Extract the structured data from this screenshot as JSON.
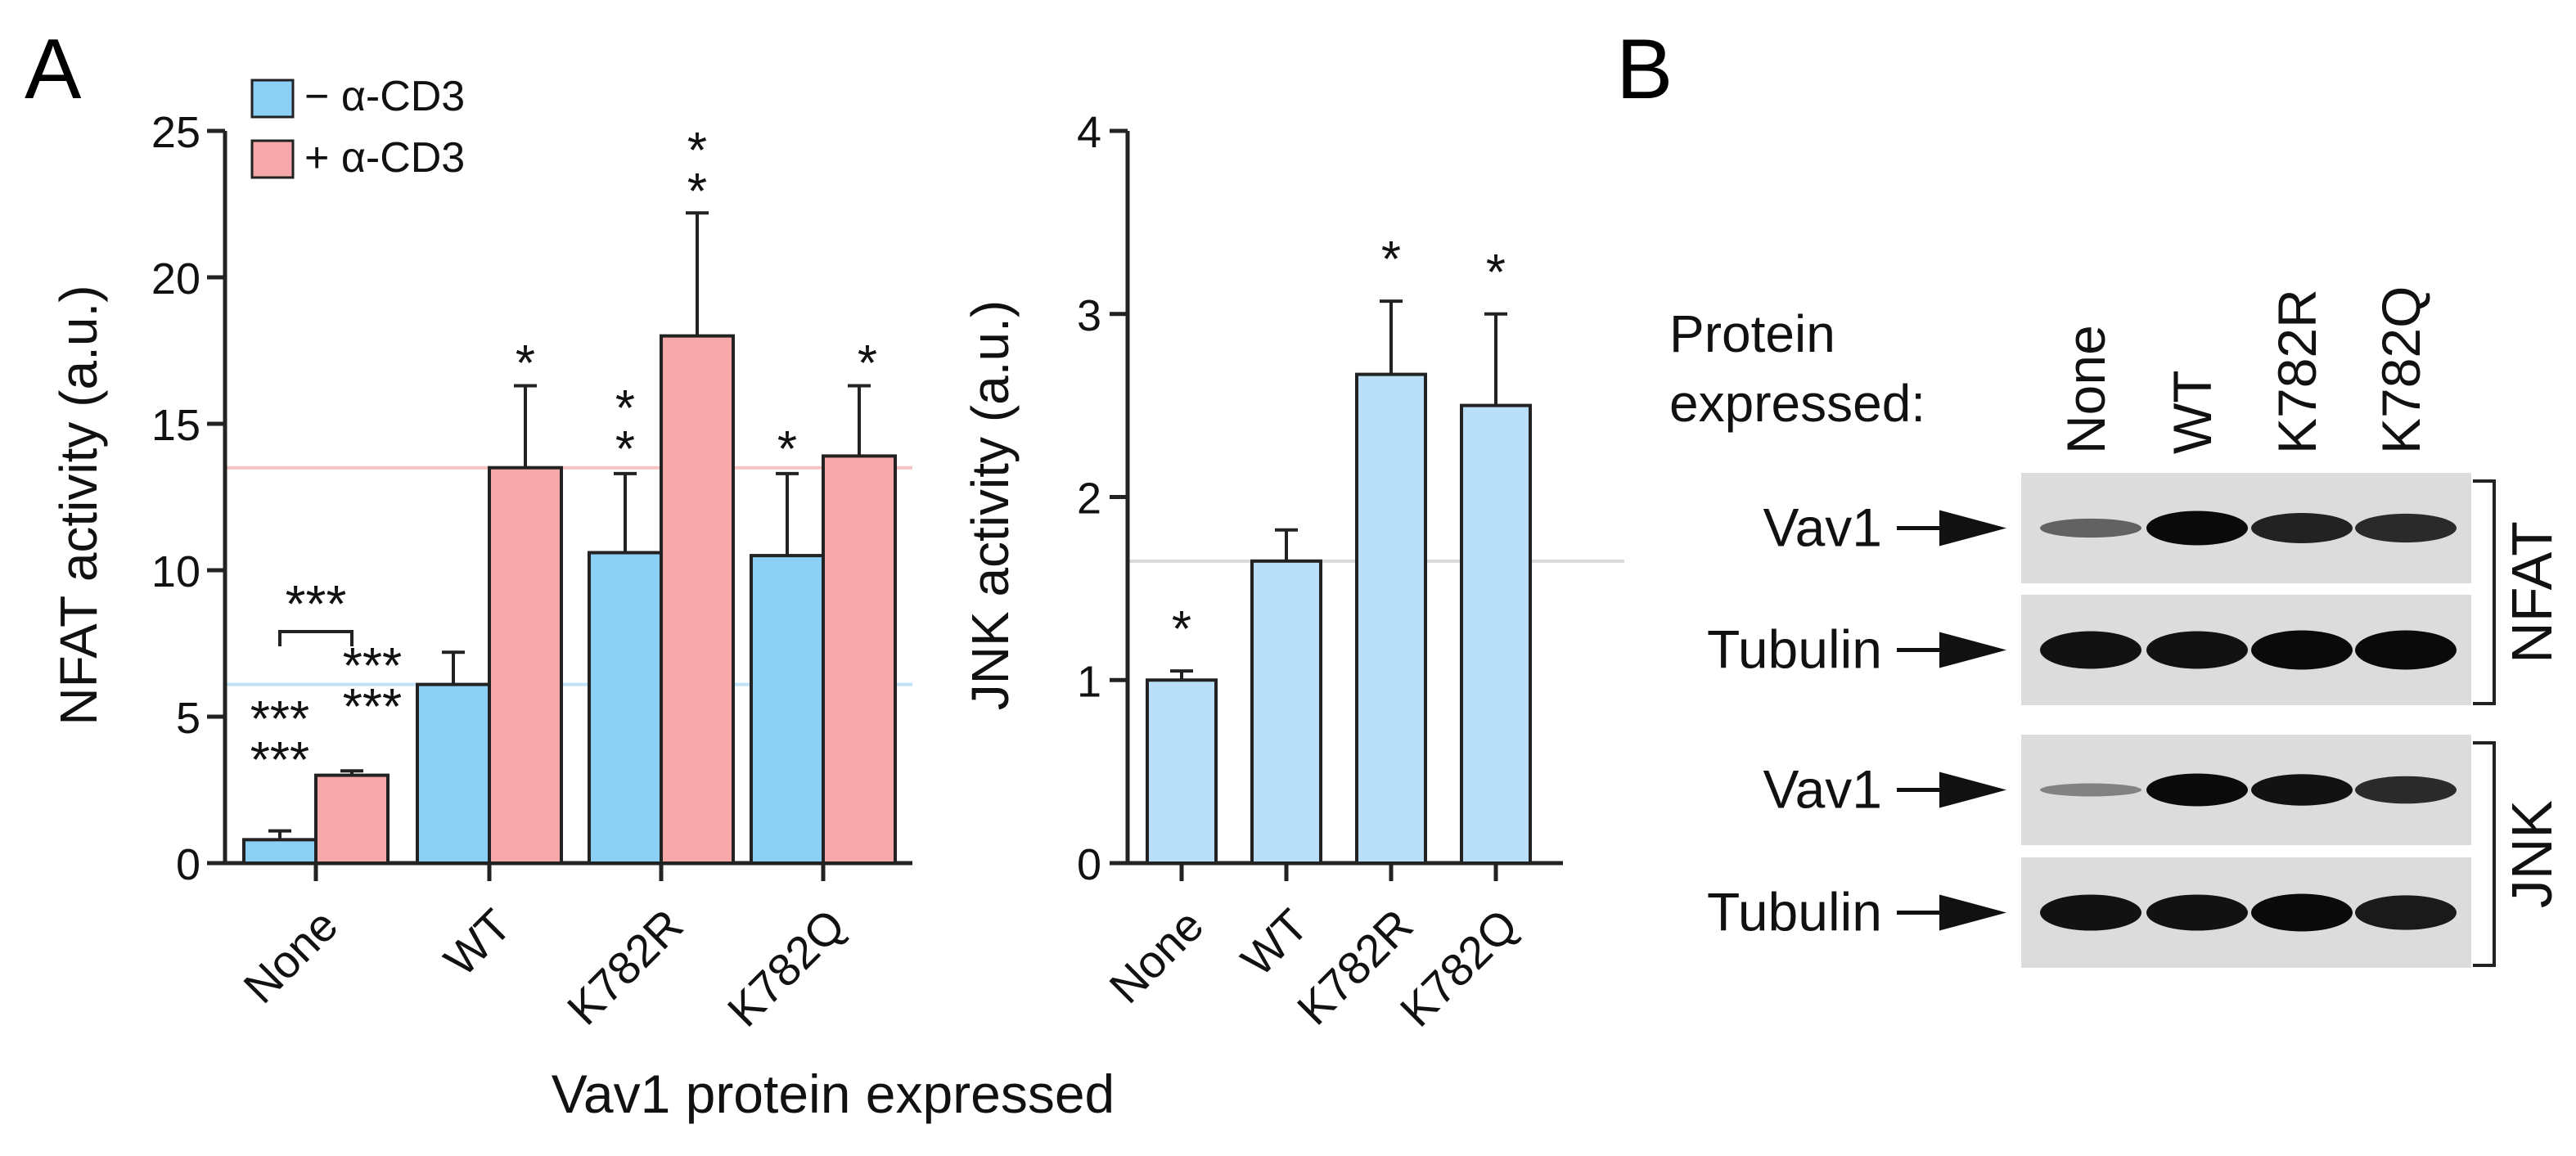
{
  "panels": {
    "a": "A",
    "b": "B"
  },
  "legend": {
    "minus": "− α-CD3",
    "plus": "+ α-CD3"
  },
  "xlabel_common": "Vav1 protein expressed",
  "colors": {
    "minus": "#8ccff5",
    "plus": "#f5a7a9",
    "jnk": "#b9e0f8",
    "star_blue": "#4cb5ee",
    "star_red": "#f07f82",
    "ref_blue": "#bfe2f7",
    "ref_red": "#f6c2c4",
    "ref_grey": "#d9d9d9"
  },
  "chart_data": [
    {
      "type": "bar",
      "ylabel": "NFAT activity (a.u.)",
      "ylim": [
        0,
        25
      ],
      "yticks": [
        "0",
        "5",
        "10",
        "15",
        "20",
        "25"
      ],
      "categories": [
        "None",
        "WT",
        "K782R",
        "K782Q"
      ],
      "series": [
        {
          "name": "− α-CD3",
          "values": [
            0.8,
            6.1,
            10.6,
            10.5
          ],
          "errors": [
            0.3,
            1.1,
            2.7,
            2.8
          ]
        },
        {
          "name": "+ α-CD3",
          "values": [
            3.0,
            13.5,
            18.0,
            13.9
          ],
          "errors": [
            0.15,
            2.8,
            4.2,
            2.4
          ]
        }
      ],
      "reference_lines": [
        6.1,
        13.5
      ],
      "significance": {
        "bracket": "***",
        "none_minus": [
          "***",
          "***"
        ],
        "none_plus": [
          "***",
          "***"
        ],
        "wt_plus": [
          "*"
        ],
        "k782r_minus": [
          "*",
          "*"
        ],
        "k782r_plus": [
          "*",
          "*"
        ],
        "k782q_minus": [
          "*"
        ],
        "k782q_plus": [
          "*"
        ]
      }
    },
    {
      "type": "bar",
      "ylabel": "JNK activity (a.u.)",
      "ylim": [
        0,
        4
      ],
      "yticks": [
        "0",
        "1",
        "2",
        "3",
        "4"
      ],
      "categories": [
        "None",
        "WT",
        "K782R",
        "K782Q"
      ],
      "values": [
        1.0,
        1.65,
        2.67,
        2.5
      ],
      "errors": [
        0.05,
        0.17,
        0.4,
        0.5
      ],
      "reference_lines": [
        1.65
      ],
      "significance": [
        "*",
        "",
        "*",
        "*"
      ]
    }
  ],
  "blot": {
    "header_line1": "Protein",
    "header_line2": "expressed:",
    "lanes": [
      "None",
      "WT",
      "K782R",
      "K782Q"
    ],
    "rows": [
      "Vav1",
      "Tubulin",
      "Vav1",
      "Tubulin"
    ],
    "groups": [
      "NFAT",
      "JNK"
    ],
    "vav1_nfat_intensity": [
      0.45,
      1.0,
      0.85,
      0.8
    ],
    "tubulin_nfat_intensity": [
      0.95,
      0.95,
      1.0,
      1.0
    ],
    "vav1_jnk_intensity": [
      0.25,
      1.0,
      0.95,
      0.8
    ],
    "tubulin_jnk_intensity": [
      0.95,
      0.95,
      1.0,
      0.9
    ]
  }
}
